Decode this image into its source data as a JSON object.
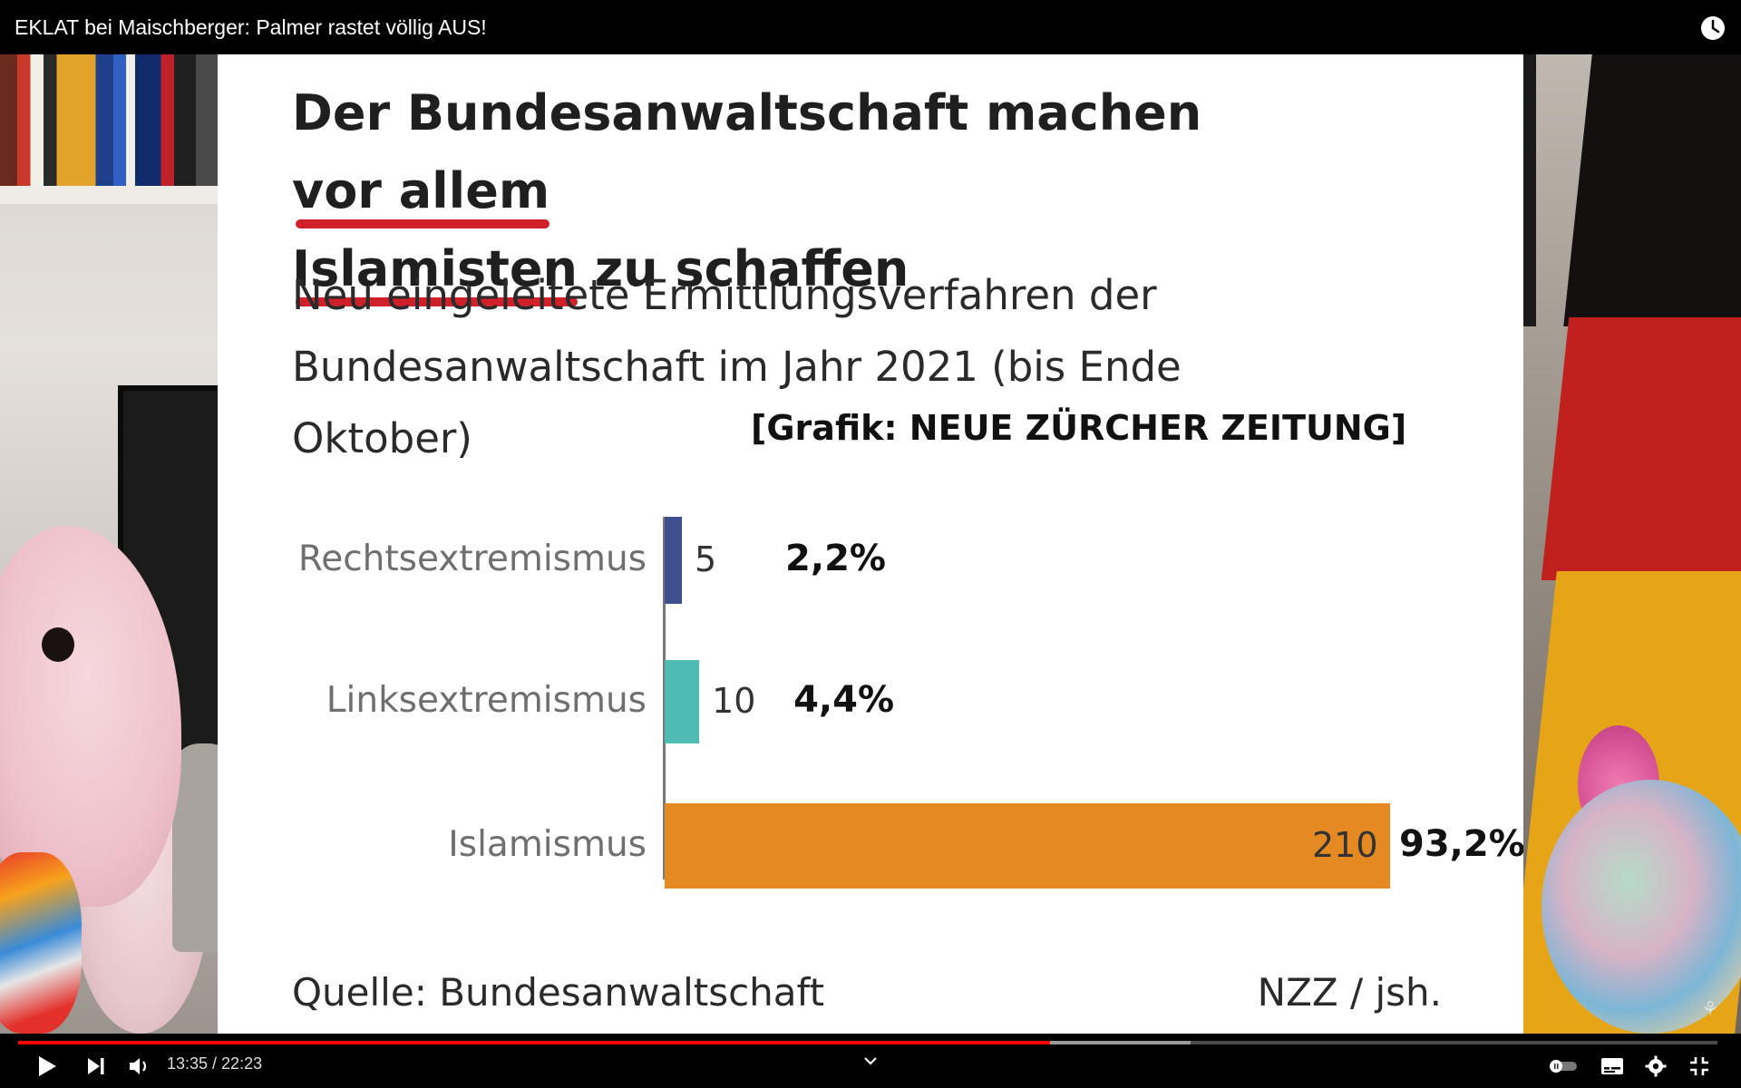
{
  "window": {
    "title": "EKLAT bei Maischberger: Palmer rastet völlig AUS!"
  },
  "slide": {
    "title_part1": "Der Bundesanwaltschaft machen ",
    "title_underlined1": "vor allem",
    "title_underlined2": "Islamisten",
    "title_part2": " zu schaffen",
    "subtitle": "Neu eingeleitete Ermittlungsverfahren der Bundesanwaltschaft im Jahr 2021 (bis Ende Oktober)",
    "credit": "[Grafik: NEUE ZÜRCHER ZEITUNG]",
    "source": "Quelle: Bundesanwaltschaft",
    "author": "NZZ / jsh."
  },
  "chart_data": {
    "type": "bar",
    "orientation": "horizontal",
    "title": "Der Bundesanwaltschaft machen vor allem Islamisten zu schaffen",
    "subtitle": "Neu eingeleitete Ermittlungsverfahren der Bundesanwaltschaft im Jahr 2021 (bis Ende Oktober)",
    "categories": [
      "Rechtsextremismus",
      "Linksextremismus",
      "Islamismus"
    ],
    "values": [
      5,
      10,
      210
    ],
    "percent_labels": [
      "2,2%",
      "4,4%",
      "93,2%"
    ],
    "colors": [
      "#3d4f8f",
      "#4fbcb4",
      "#e58a22"
    ],
    "xlim": [
      0,
      210
    ],
    "grid": false,
    "source": "Quelle: Bundesanwaltschaft",
    "credit": "NZZ / jsh."
  },
  "player": {
    "current_time": "13:35",
    "duration": "22:23",
    "time_text": "13:35 / 22:23",
    "progress_fraction": 0.607,
    "buffer_fraction": 0.69,
    "progress_color": "#ff0000"
  },
  "icons": {
    "watch_later": "clock-icon",
    "play": "play-icon",
    "next": "next-icon",
    "volume": "volume-icon",
    "chevron": "chevron-down-icon",
    "autoplay": "autoplay-toggle-icon",
    "subtitles": "subtitles-icon",
    "settings": "gear-icon",
    "fullscreen_exit": "exit-fullscreen-icon"
  }
}
